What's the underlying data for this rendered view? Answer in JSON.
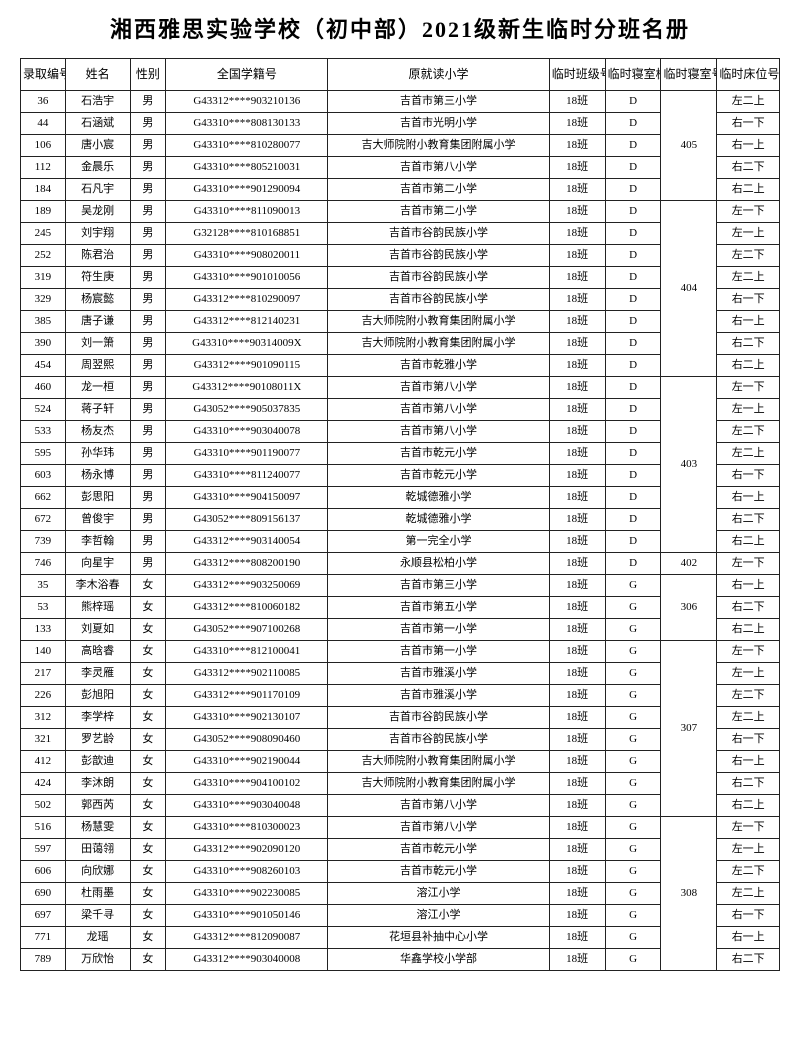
{
  "title": "湘西雅思实验学校（初中部）2021级新生临时分班名册",
  "headers": {
    "id": "录取编号",
    "name": "姓名",
    "gender": "性别",
    "student_id": "全国学籍号",
    "school": "原就读小学",
    "class": "临时班级号",
    "building": "临时寝室栋数",
    "dorm": "临时寝室号",
    "bed": "临时床位号"
  },
  "rows": [
    {
      "id": "36",
      "name": "石浩宇",
      "gender": "男",
      "sid": "G43312****903210136",
      "school": "吉首市第三小学",
      "class": "18班",
      "bldg": "D",
      "dorm": "405",
      "bed": "左二上"
    },
    {
      "id": "44",
      "name": "石涵斌",
      "gender": "男",
      "sid": "G43310****808130133",
      "school": "吉首市光明小学",
      "class": "18班",
      "bldg": "D",
      "dorm": "405",
      "bed": "右一下"
    },
    {
      "id": "106",
      "name": "唐小宸",
      "gender": "男",
      "sid": "G43310****810280077",
      "school": "吉大师院附小教育集团附属小学",
      "class": "18班",
      "bldg": "D",
      "dorm": "405",
      "bed": "右一上"
    },
    {
      "id": "112",
      "name": "金晨乐",
      "gender": "男",
      "sid": "G43310****805210031",
      "school": "吉首市第八小学",
      "class": "18班",
      "bldg": "D",
      "dorm": "405",
      "bed": "右二下"
    },
    {
      "id": "184",
      "name": "石凡宇",
      "gender": "男",
      "sid": "G43310****901290094",
      "school": "吉首市第二小学",
      "class": "18班",
      "bldg": "D",
      "dorm": "405",
      "bed": "右二上"
    },
    {
      "id": "189",
      "name": "吴龙刚",
      "gender": "男",
      "sid": "G43310****811090013",
      "school": "吉首市第二小学",
      "class": "18班",
      "bldg": "D",
      "dorm": "404",
      "bed": "左一下"
    },
    {
      "id": "245",
      "name": "刘宇翔",
      "gender": "男",
      "sid": "G32128****810168851",
      "school": "吉首市谷韵民族小学",
      "class": "18班",
      "bldg": "D",
      "dorm": "404",
      "bed": "左一上"
    },
    {
      "id": "252",
      "name": "陈君治",
      "gender": "男",
      "sid": "G43310****908020011",
      "school": "吉首市谷韵民族小学",
      "class": "18班",
      "bldg": "D",
      "dorm": "404",
      "bed": "左二下"
    },
    {
      "id": "319",
      "name": "符生庚",
      "gender": "男",
      "sid": "G43310****901010056",
      "school": "吉首市谷韵民族小学",
      "class": "18班",
      "bldg": "D",
      "dorm": "404",
      "bed": "左二上"
    },
    {
      "id": "329",
      "name": "杨宸懿",
      "gender": "男",
      "sid": "G43312****810290097",
      "school": "吉首市谷韵民族小学",
      "class": "18班",
      "bldg": "D",
      "dorm": "404",
      "bed": "右一下"
    },
    {
      "id": "385",
      "name": "唐子谦",
      "gender": "男",
      "sid": "G43312****812140231",
      "school": "吉大师院附小教育集团附属小学",
      "class": "18班",
      "bldg": "D",
      "dorm": "404",
      "bed": "右一上"
    },
    {
      "id": "390",
      "name": "刘一箫",
      "gender": "男",
      "sid": "G43310****90314009X",
      "school": "吉大师院附小教育集团附属小学",
      "class": "18班",
      "bldg": "D",
      "dorm": "404",
      "bed": "右二下"
    },
    {
      "id": "454",
      "name": "周翌熙",
      "gender": "男",
      "sid": "G43312****901090115",
      "school": "吉首市乾雅小学",
      "class": "18班",
      "bldg": "D",
      "dorm": "404",
      "bed": "右二上"
    },
    {
      "id": "460",
      "name": "龙一桓",
      "gender": "男",
      "sid": "G43312****90108011X",
      "school": "吉首市第八小学",
      "class": "18班",
      "bldg": "D",
      "dorm": "403",
      "bed": "左一下"
    },
    {
      "id": "524",
      "name": "蒋子轩",
      "gender": "男",
      "sid": "G43052****905037835",
      "school": "吉首市第八小学",
      "class": "18班",
      "bldg": "D",
      "dorm": "403",
      "bed": "左一上"
    },
    {
      "id": "533",
      "name": "杨友杰",
      "gender": "男",
      "sid": "G43310****903040078",
      "school": "吉首市第八小学",
      "class": "18班",
      "bldg": "D",
      "dorm": "403",
      "bed": "左二下"
    },
    {
      "id": "595",
      "name": "孙华玮",
      "gender": "男",
      "sid": "G43310****901190077",
      "school": "吉首市乾元小学",
      "class": "18班",
      "bldg": "D",
      "dorm": "403",
      "bed": "左二上"
    },
    {
      "id": "603",
      "name": "杨永博",
      "gender": "男",
      "sid": "G43310****811240077",
      "school": "吉首市乾元小学",
      "class": "18班",
      "bldg": "D",
      "dorm": "403",
      "bed": "右一下"
    },
    {
      "id": "662",
      "name": "彭思阳",
      "gender": "男",
      "sid": "G43310****904150097",
      "school": "乾城德雅小学",
      "class": "18班",
      "bldg": "D",
      "dorm": "403",
      "bed": "右一上"
    },
    {
      "id": "672",
      "name": "曾俊宇",
      "gender": "男",
      "sid": "G43052****809156137",
      "school": "乾城德雅小学",
      "class": "18班",
      "bldg": "D",
      "dorm": "403",
      "bed": "右二下"
    },
    {
      "id": "739",
      "name": "李哲翰",
      "gender": "男",
      "sid": "G43312****903140054",
      "school": "第一完全小学",
      "class": "18班",
      "bldg": "D",
      "dorm": "403",
      "bed": "右二上"
    },
    {
      "id": "746",
      "name": "向星宇",
      "gender": "男",
      "sid": "G43312****808200190",
      "school": "永顺县松柏小学",
      "class": "18班",
      "bldg": "D",
      "dorm": "402",
      "bed": "左一下"
    },
    {
      "id": "35",
      "name": "李木浴春",
      "gender": "女",
      "sid": "G43312****903250069",
      "school": "吉首市第三小学",
      "class": "18班",
      "bldg": "G",
      "dorm": "306",
      "bed": "右一上"
    },
    {
      "id": "53",
      "name": "熊梓瑶",
      "gender": "女",
      "sid": "G43312****810060182",
      "school": "吉首市第五小学",
      "class": "18班",
      "bldg": "G",
      "dorm": "306",
      "bed": "右二下"
    },
    {
      "id": "133",
      "name": "刘夏如",
      "gender": "女",
      "sid": "G43052****907100268",
      "school": "吉首市第一小学",
      "class": "18班",
      "bldg": "G",
      "dorm": "306",
      "bed": "右二上"
    },
    {
      "id": "140",
      "name": "高晗睿",
      "gender": "女",
      "sid": "G43310****812100041",
      "school": "吉首市第一小学",
      "class": "18班",
      "bldg": "G",
      "dorm": "307",
      "bed": "左一下"
    },
    {
      "id": "217",
      "name": "李灵雁",
      "gender": "女",
      "sid": "G43312****902110085",
      "school": "吉首市雅溪小学",
      "class": "18班",
      "bldg": "G",
      "dorm": "307",
      "bed": "左一上"
    },
    {
      "id": "226",
      "name": "彭旭阳",
      "gender": "女",
      "sid": "G43312****901170109",
      "school": "吉首市雅溪小学",
      "class": "18班",
      "bldg": "G",
      "dorm": "307",
      "bed": "左二下"
    },
    {
      "id": "312",
      "name": "李学梓",
      "gender": "女",
      "sid": "G43310****902130107",
      "school": "吉首市谷韵民族小学",
      "class": "18班",
      "bldg": "G",
      "dorm": "307",
      "bed": "左二上"
    },
    {
      "id": "321",
      "name": "罗艺龄",
      "gender": "女",
      "sid": "G43052****908090460",
      "school": "吉首市谷韵民族小学",
      "class": "18班",
      "bldg": "G",
      "dorm": "307",
      "bed": "右一下"
    },
    {
      "id": "412",
      "name": "彭歆迪",
      "gender": "女",
      "sid": "G43310****902190044",
      "school": "吉大师院附小教育集团附属小学",
      "class": "18班",
      "bldg": "G",
      "dorm": "307",
      "bed": "右一上"
    },
    {
      "id": "424",
      "name": "李沐朗",
      "gender": "女",
      "sid": "G43310****904100102",
      "school": "吉大师院附小教育集团附属小学",
      "class": "18班",
      "bldg": "G",
      "dorm": "307",
      "bed": "右二下"
    },
    {
      "id": "502",
      "name": "郭西芮",
      "gender": "女",
      "sid": "G43310****903040048",
      "school": "吉首市第八小学",
      "class": "18班",
      "bldg": "G",
      "dorm": "307",
      "bed": "右二上"
    },
    {
      "id": "516",
      "name": "杨慧雯",
      "gender": "女",
      "sid": "G43310****810300023",
      "school": "吉首市第八小学",
      "class": "18班",
      "bldg": "G",
      "dorm": "308",
      "bed": "左一下"
    },
    {
      "id": "597",
      "name": "田蔼翎",
      "gender": "女",
      "sid": "G43312****902090120",
      "school": "吉首市乾元小学",
      "class": "18班",
      "bldg": "G",
      "dorm": "308",
      "bed": "左一上"
    },
    {
      "id": "606",
      "name": "向欣娜",
      "gender": "女",
      "sid": "G43310****908260103",
      "school": "吉首市乾元小学",
      "class": "18班",
      "bldg": "G",
      "dorm": "308",
      "bed": "左二下"
    },
    {
      "id": "690",
      "name": "杜雨墨",
      "gender": "女",
      "sid": "G43310****902230085",
      "school": "溶江小学",
      "class": "18班",
      "bldg": "G",
      "dorm": "308",
      "bed": "左二上"
    },
    {
      "id": "697",
      "name": "梁千寻",
      "gender": "女",
      "sid": "G43310****901050146",
      "school": "溶江小学",
      "class": "18班",
      "bldg": "G",
      "dorm": "308",
      "bed": "右一下"
    },
    {
      "id": "771",
      "name": "龙瑶",
      "gender": "女",
      "sid": "G43312****812090087",
      "school": "花垣县补抽中心小学",
      "class": "18班",
      "bldg": "G",
      "dorm": "308",
      "bed": "右一上"
    },
    {
      "id": "789",
      "name": "万欣怡",
      "gender": "女",
      "sid": "G43312****903040008",
      "school": "华鑫学校小学部",
      "class": "18班",
      "bldg": "G",
      "dorm": "308",
      "bed": "右二下"
    }
  ],
  "dorm_spans": [
    {
      "start": 0,
      "span": 5,
      "label": "405"
    },
    {
      "start": 5,
      "span": 8,
      "label": "404"
    },
    {
      "start": 13,
      "span": 8,
      "label": "403"
    },
    {
      "start": 21,
      "span": 1,
      "label": "402"
    },
    {
      "start": 22,
      "span": 3,
      "label": "306"
    },
    {
      "start": 25,
      "span": 8,
      "label": "307"
    },
    {
      "start": 33,
      "span": 7,
      "label": "308"
    }
  ]
}
